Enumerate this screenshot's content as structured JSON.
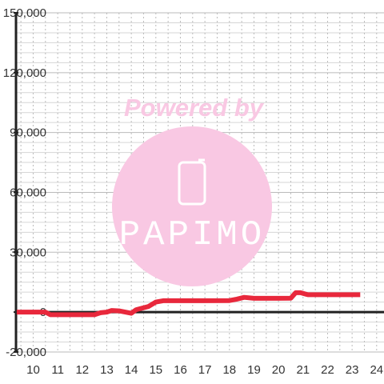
{
  "watermark": {
    "text": "Powered by",
    "logo_text": "PAPIMO",
    "color": "#f9c8e3"
  },
  "chart_data": {
    "type": "line",
    "title": "",
    "xlabel": "",
    "ylabel": "",
    "xlim": [
      9.3,
      24.3
    ],
    "ylim": [
      -20000,
      150000
    ],
    "grid": true,
    "x_ticks": [
      10,
      11,
      12,
      13,
      14,
      15,
      16,
      17,
      18,
      19,
      20,
      21,
      22,
      23,
      24
    ],
    "y_ticks": [
      -20000,
      0,
      30000,
      60000,
      90000,
      120000,
      150000
    ],
    "y_tick_labels": [
      "-20,000",
      "0",
      "30,000",
      "60,000",
      "90,000",
      "120,000",
      "150,000"
    ],
    "series": [
      {
        "color": "#e8283c",
        "points": [
          [
            9.33,
            0
          ],
          [
            10.0,
            0
          ],
          [
            10.5,
            0
          ],
          [
            10.7,
            -1300
          ],
          [
            11.5,
            -1300
          ],
          [
            12.5,
            -1300
          ],
          [
            12.75,
            -300
          ],
          [
            13.0,
            0
          ],
          [
            13.2,
            800
          ],
          [
            13.5,
            600
          ],
          [
            14.0,
            -600
          ],
          [
            14.2,
            1200
          ],
          [
            14.7,
            2800
          ],
          [
            15.0,
            5000
          ],
          [
            15.3,
            5700
          ],
          [
            16.0,
            5700
          ],
          [
            17.0,
            5700
          ],
          [
            18.0,
            5800
          ],
          [
            18.3,
            6500
          ],
          [
            18.6,
            7400
          ],
          [
            19.0,
            6900
          ],
          [
            20.0,
            6900
          ],
          [
            20.5,
            7000
          ],
          [
            20.7,
            9700
          ],
          [
            20.9,
            9700
          ],
          [
            21.2,
            8700
          ],
          [
            22.0,
            8700
          ],
          [
            23.0,
            8700
          ],
          [
            23.33,
            8700
          ]
        ]
      }
    ]
  }
}
